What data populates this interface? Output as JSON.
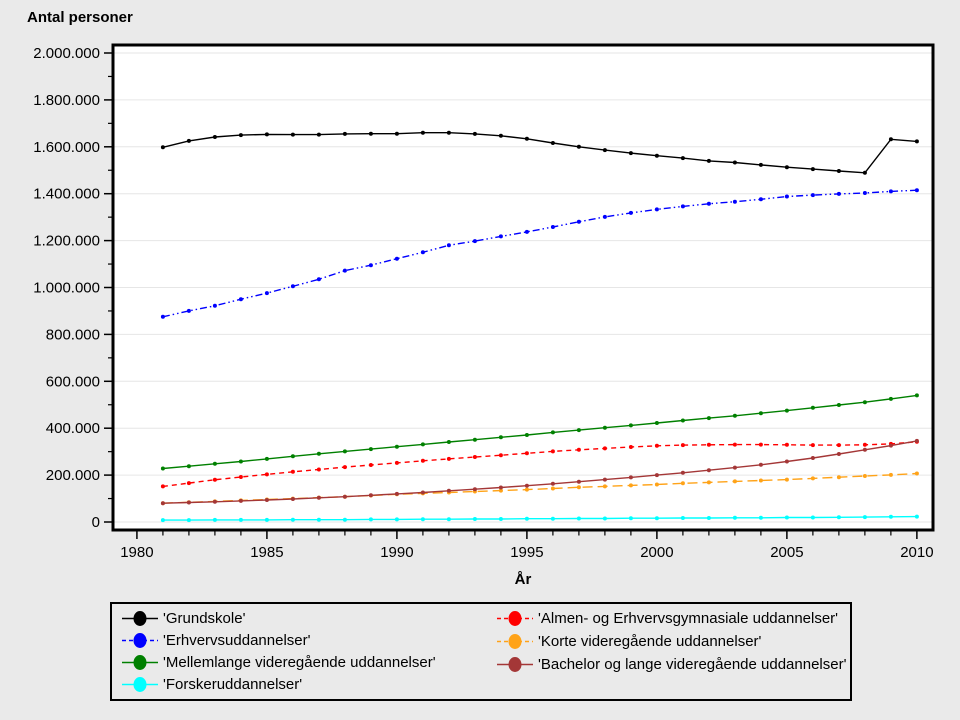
{
  "page": {
    "background": "#EAEAEA"
  },
  "chart_data": {
    "type": "line",
    "title": "",
    "ylabel": "Antal personer",
    "xlabel": "År",
    "xlim": [
      1979.08,
      2010.62
    ],
    "ylim": [
      0,
      2000000
    ],
    "grid": "horizontal-major",
    "legend_position": "bottom",
    "x_tick_values": [
      1980,
      1985,
      1990,
      1995,
      2000,
      2005,
      2010
    ],
    "x_tick_labels": [
      "1980",
      "1985",
      "1990",
      "1995",
      "2000",
      "2005",
      "2010"
    ],
    "x_minor_step": 1,
    "y_tick_step": 200000,
    "y_minor_step": 100000,
    "y_tick_labels": [
      "0",
      "200.000",
      "400.000",
      "600.000",
      "800.000",
      "1.000.000",
      "1.200.000",
      "1.400.000",
      "1.600.000",
      "1.800.000",
      "2.000.000"
    ],
    "x": [
      1981,
      1982,
      1983,
      1984,
      1985,
      1986,
      1987,
      1988,
      1989,
      1990,
      1991,
      1992,
      1993,
      1994,
      1995,
      1996,
      1997,
      1998,
      1999,
      2000,
      2001,
      2002,
      2003,
      2004,
      2005,
      2006,
      2007,
      2008,
      2009,
      2010
    ],
    "series": [
      {
        "name": "'Grundskole'",
        "color": "#000000",
        "dash": "",
        "values": [
          1598000,
          1625000,
          1642000,
          1650000,
          1653000,
          1652000,
          1652000,
          1655000,
          1656000,
          1656000,
          1660000,
          1660000,
          1655000,
          1647000,
          1634000,
          1616000,
          1600000,
          1586000,
          1573000,
          1562000,
          1552000,
          1540000,
          1533000,
          1523000,
          1513000,
          1505000,
          1497000,
          1489000,
          1632000,
          1623000
        ]
      },
      {
        "name": "'Erhvervsuddannelser'",
        "color": "#0000FF",
        "dash": "7 3 1.5 3 1.5 3",
        "values": [
          875000,
          900000,
          922000,
          950000,
          976000,
          1005000,
          1035000,
          1072000,
          1095000,
          1123000,
          1150000,
          1180000,
          1198000,
          1218000,
          1237000,
          1258000,
          1280000,
          1301000,
          1318000,
          1333000,
          1346000,
          1357000,
          1366000,
          1376000,
          1388000,
          1394000,
          1399000,
          1403000,
          1410000,
          1415000
        ]
      },
      {
        "name": "'Mellemlange videregående uddannelser'",
        "color": "#008000",
        "dash": "",
        "values": [
          228000,
          238000,
          248000,
          258000,
          269000,
          280000,
          291000,
          301000,
          311000,
          321000,
          331000,
          341000,
          351000,
          361000,
          371000,
          382000,
          392000,
          402000,
          412000,
          422000,
          433000,
          443000,
          453000,
          464000,
          475000,
          487000,
          499000,
          511000,
          525000,
          540000
        ]
      },
      {
        "name": "'Forskeruddannelser'",
        "color": "#00FFFF",
        "dash": "",
        "values": [
          8000,
          8000,
          9000,
          9000,
          9000,
          10000,
          10000,
          10000,
          11000,
          11000,
          12000,
          12000,
          13000,
          13000,
          14000,
          14000,
          15000,
          15000,
          16000,
          16000,
          17000,
          17000,
          18000,
          18000,
          19000,
          19000,
          20000,
          21000,
          22000,
          23000
        ]
      },
      {
        "name": "'Almen- og Erhvervsgymnasiale uddannelser'",
        "color": "#FF0000",
        "dash": "5 4",
        "values": [
          152000,
          166000,
          180000,
          192000,
          203000,
          214000,
          224000,
          234000,
          243000,
          252000,
          261000,
          269000,
          277000,
          285000,
          293000,
          301000,
          308000,
          314000,
          320000,
          325000,
          328000,
          329000,
          330000,
          330000,
          329000,
          328000,
          328000,
          329000,
          333000,
          342000
        ]
      },
      {
        "name": "'Korte videregående uddannelser'",
        "color": "#FFA318",
        "dash": "10 5",
        "values": [
          80000,
          84000,
          88000,
          92000,
          96000,
          100000,
          104000,
          108000,
          113000,
          118000,
          122000,
          126000,
          130000,
          134000,
          138000,
          143000,
          148000,
          152000,
          156000,
          160000,
          165000,
          169000,
          173000,
          177000,
          181000,
          186000,
          191000,
          196000,
          201000,
          207000
        ]
      },
      {
        "name": "'Bachelor og lange videregående uddannelser'",
        "color": "#A43737",
        "dash": "",
        "values": [
          80000,
          83000,
          86000,
          90000,
          94000,
          98000,
          103000,
          108000,
          114000,
          120000,
          126000,
          133000,
          140000,
          147000,
          155000,
          163000,
          172000,
          181000,
          190000,
          200000,
          210000,
          221000,
          232000,
          244000,
          258000,
          273000,
          290000,
          308000,
          326000,
          346000
        ]
      }
    ],
    "legend_columns": [
      [
        0,
        1,
        2,
        3
      ],
      [
        4,
        5,
        6
      ]
    ]
  }
}
